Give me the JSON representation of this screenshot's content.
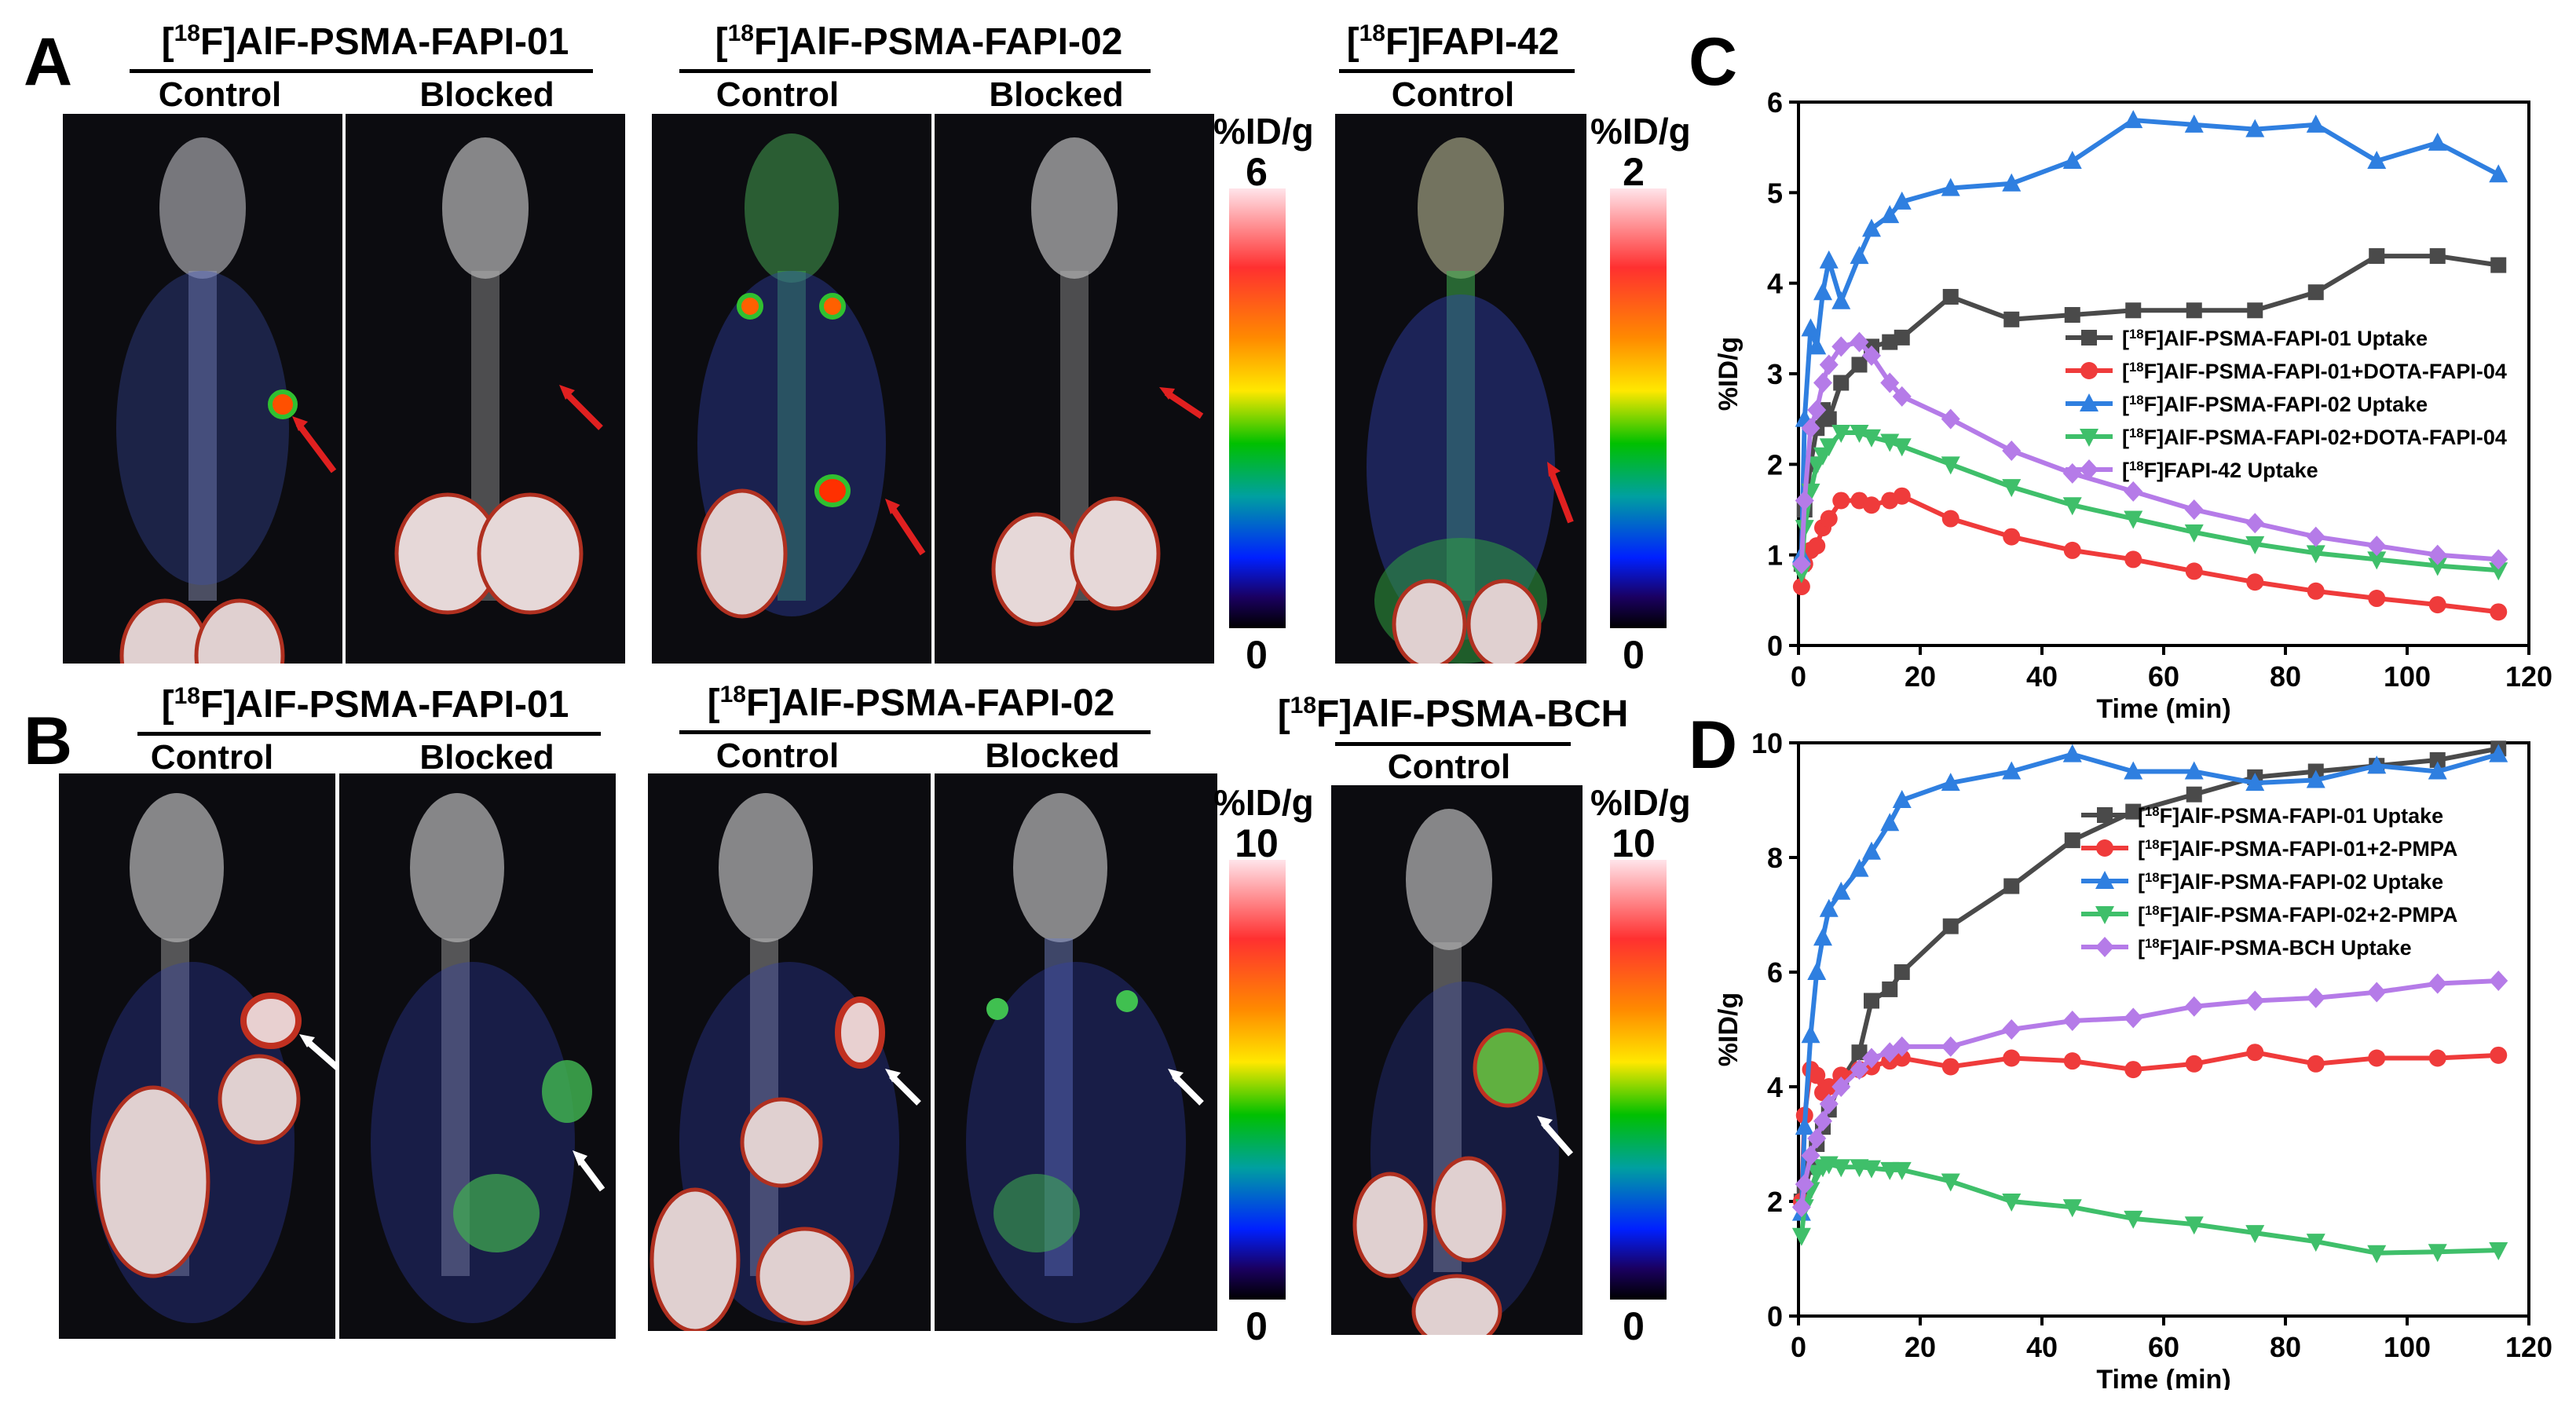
{
  "panels": {
    "A": {
      "letter": "A",
      "groups": [
        {
          "title_sup": "18",
          "title_pre": "[",
          "title_post": "F]AlF-PSMA-FAPI-01",
          "labels": [
            "Control",
            "Blocked"
          ]
        },
        {
          "title_sup": "18",
          "title_pre": "[",
          "title_post": "F]AlF-PSMA-FAPI-02",
          "labels": [
            "Control",
            "Blocked"
          ]
        },
        {
          "title_sup": "18",
          "title_pre": "[",
          "title_post": "F]FAPI-42",
          "labels": [
            "Control"
          ]
        }
      ],
      "colorbars": [
        {
          "unit": "%ID/g",
          "max": "6",
          "min": "0"
        },
        {
          "unit": "%ID/g",
          "max": "2",
          "min": "0"
        }
      ]
    },
    "B": {
      "letter": "B",
      "groups": [
        {
          "title_sup": "18",
          "title_pre": "[",
          "title_post": "F]AlF-PSMA-FAPI-01",
          "labels": [
            "Control",
            "Blocked"
          ]
        },
        {
          "title_sup": "18",
          "title_pre": "[",
          "title_post": "F]AlF-PSMA-FAPI-02",
          "labels": [
            "Control",
            "Blocked"
          ]
        },
        {
          "title_sup": "18",
          "title_pre": "[",
          "title_post": "F]AlF-PSMA-BCH",
          "labels": [
            "Control"
          ]
        }
      ],
      "colorbars": [
        {
          "unit": "%ID/g",
          "max": "10",
          "min": "0"
        },
        {
          "unit": "%ID/g",
          "max": "10",
          "min": "0"
        }
      ]
    },
    "C": {
      "letter": "C"
    },
    "D": {
      "letter": "D"
    }
  },
  "colors": {
    "black": "#4a4a4a",
    "red": "#ef3b3b",
    "blue": "#2f7fe0",
    "green": "#3fbf6a",
    "purple": "#b57be8"
  },
  "chart_data": [
    {
      "id": "C",
      "type": "line",
      "xlabel": "Time (min)",
      "ylabel": "%ID/g",
      "xlim": [
        0,
        120
      ],
      "ylim": [
        0,
        6
      ],
      "xticks": [
        0,
        20,
        40,
        60,
        80,
        100,
        120
      ],
      "yticks": [
        0,
        1,
        2,
        3,
        4,
        5,
        6
      ],
      "series": [
        {
          "name": "[18F]AlF-PSMA-FAPI-01 Uptake",
          "sup": "18",
          "pre": "[",
          "post": "F]AlF-PSMA-FAPI-01 Uptake",
          "color": "#4a4a4a",
          "marker": "square",
          "x": [
            0.5,
            1,
            2,
            3,
            4,
            5,
            7,
            10,
            12,
            15,
            17,
            25,
            35,
            45,
            55,
            65,
            75,
            85,
            95,
            105,
            115
          ],
          "y": [
            0.9,
            1.5,
            2.0,
            2.4,
            2.6,
            2.5,
            2.9,
            3.1,
            3.3,
            3.35,
            3.4,
            3.85,
            3.6,
            3.65,
            3.7,
            3.7,
            3.7,
            3.9,
            4.3,
            4.3,
            4.2
          ]
        },
        {
          "name": "[18F]AlF-PSMA-FAPI-01+DOTA-FAPI-04",
          "sup": "18",
          "pre": "[",
          "post": "F]AlF-PSMA-FAPI-01+DOTA-FAPI-04",
          "color": "#ef3b3b",
          "marker": "circle",
          "x": [
            0.5,
            1,
            2,
            3,
            4,
            5,
            7,
            10,
            12,
            15,
            17,
            25,
            35,
            45,
            55,
            65,
            75,
            85,
            95,
            105,
            115
          ],
          "y": [
            0.65,
            0.9,
            1.05,
            1.1,
            1.3,
            1.4,
            1.6,
            1.6,
            1.55,
            1.6,
            1.65,
            1.4,
            1.2,
            1.05,
            0.95,
            0.82,
            0.7,
            0.6,
            0.52,
            0.45,
            0.37
          ]
        },
        {
          "name": "[18F]AlF-PSMA-FAPI-02 Uptake",
          "sup": "18",
          "pre": "[",
          "post": "F]AlF-PSMA-FAPI-02 Uptake",
          "color": "#2f7fe0",
          "marker": "triangle-up",
          "x": [
            0.5,
            1,
            2,
            3,
            4,
            5,
            7,
            10,
            12,
            15,
            17,
            25,
            35,
            45,
            55,
            65,
            75,
            85,
            95,
            105,
            115
          ],
          "y": [
            1.0,
            2.5,
            3.5,
            3.3,
            3.9,
            4.25,
            3.8,
            4.3,
            4.6,
            4.75,
            4.9,
            5.05,
            5.1,
            5.35,
            5.8,
            5.75,
            5.7,
            5.75,
            5.35,
            5.55,
            5.2
          ]
        },
        {
          "name": "[18F]AlF-PSMA-FAPI-02+DOTA-FAPI-04",
          "sup": "18",
          "pre": "[",
          "post": "F]AlF-PSMA-FAPI-02+DOTA-FAPI-04",
          "color": "#3fbf6a",
          "marker": "triangle-down",
          "x": [
            0.5,
            1,
            2,
            3,
            4,
            5,
            7,
            10,
            12,
            15,
            17,
            25,
            35,
            45,
            55,
            65,
            75,
            85,
            95,
            105,
            115
          ],
          "y": [
            0.8,
            1.3,
            1.7,
            2.0,
            2.1,
            2.2,
            2.35,
            2.35,
            2.3,
            2.25,
            2.2,
            2.0,
            1.75,
            1.55,
            1.4,
            1.25,
            1.12,
            1.02,
            0.95,
            0.88,
            0.83
          ]
        },
        {
          "name": "[18F]FAPI-42 Uptake",
          "sup": "18",
          "pre": "[",
          "post": "F]FAPI-42 Uptake",
          "color": "#b57be8",
          "marker": "diamond",
          "x": [
            0.5,
            1,
            2,
            3,
            4,
            5,
            7,
            10,
            12,
            15,
            17,
            25,
            35,
            45,
            55,
            65,
            75,
            85,
            95,
            105,
            115
          ],
          "y": [
            0.9,
            1.6,
            2.4,
            2.6,
            2.9,
            3.1,
            3.3,
            3.35,
            3.2,
            2.9,
            2.75,
            2.5,
            2.15,
            1.9,
            1.7,
            1.5,
            1.35,
            1.2,
            1.1,
            1.0,
            0.95
          ]
        }
      ]
    },
    {
      "id": "D",
      "type": "line",
      "xlabel": "Time (min)",
      "ylabel": "%ID/g",
      "xlim": [
        0,
        120
      ],
      "ylim": [
        0,
        10
      ],
      "xticks": [
        0,
        20,
        40,
        60,
        80,
        100,
        120
      ],
      "yticks": [
        0,
        2,
        4,
        6,
        8,
        10
      ],
      "series": [
        {
          "name": "[18F]AlF-PSMA-FAPI-01 Uptake",
          "sup": "18",
          "pre": "[",
          "post": "F]AlF-PSMA-FAPI-01 Uptake",
          "color": "#4a4a4a",
          "marker": "square",
          "x": [
            0.5,
            1,
            2,
            3,
            4,
            5,
            7,
            10,
            12,
            15,
            17,
            25,
            35,
            45,
            55,
            65,
            75,
            85,
            95,
            105,
            115
          ],
          "y": [
            2.0,
            2.2,
            2.6,
            3.0,
            3.3,
            3.6,
            4.1,
            4.6,
            5.5,
            5.7,
            6.0,
            6.8,
            7.5,
            8.3,
            8.8,
            9.1,
            9.4,
            9.5,
            9.6,
            9.7,
            9.9
          ]
        },
        {
          "name": "[18F]AlF-PSMA-FAPI-01+2-PMPA",
          "sup": "18",
          "pre": "[",
          "post": "F]AlF-PSMA-FAPI-01+2-PMPA",
          "color": "#ef3b3b",
          "marker": "circle",
          "x": [
            0.5,
            1,
            2,
            3,
            4,
            5,
            7,
            10,
            12,
            15,
            17,
            25,
            35,
            45,
            55,
            65,
            75,
            85,
            95,
            105,
            115
          ],
          "y": [
            2.0,
            3.5,
            4.3,
            4.2,
            3.9,
            4.0,
            4.2,
            4.3,
            4.35,
            4.45,
            4.5,
            4.35,
            4.5,
            4.45,
            4.3,
            4.4,
            4.6,
            4.4,
            4.5,
            4.5,
            4.55
          ]
        },
        {
          "name": "[18F]AlF-PSMA-FAPI-02 Uptake",
          "sup": "18",
          "pre": "[",
          "post": "F]AlF-PSMA-FAPI-02 Uptake",
          "color": "#2f7fe0",
          "marker": "triangle-up",
          "x": [
            0.5,
            1,
            2,
            3,
            4,
            5,
            7,
            10,
            12,
            15,
            17,
            25,
            35,
            45,
            55,
            65,
            75,
            85,
            95,
            105,
            115
          ],
          "y": [
            1.8,
            3.3,
            4.9,
            6.0,
            6.6,
            7.1,
            7.4,
            7.8,
            8.1,
            8.6,
            9.0,
            9.3,
            9.5,
            9.8,
            9.5,
            9.5,
            9.3,
            9.35,
            9.6,
            9.5,
            9.8
          ]
        },
        {
          "name": "[18F]AlF-PSMA-FAPI-02+2-PMPA",
          "sup": "18",
          "pre": "[",
          "post": "F]AlF-PSMA-FAPI-02+2-PMPA",
          "color": "#3fbf6a",
          "marker": "triangle-down",
          "x": [
            0.5,
            1,
            2,
            3,
            4,
            5,
            7,
            10,
            12,
            15,
            17,
            25,
            35,
            45,
            55,
            65,
            75,
            85,
            95,
            105,
            115
          ],
          "y": [
            1.4,
            1.9,
            2.2,
            2.5,
            2.6,
            2.65,
            2.6,
            2.6,
            2.58,
            2.55,
            2.55,
            2.35,
            2.0,
            1.9,
            1.7,
            1.6,
            1.45,
            1.3,
            1.1,
            1.12,
            1.15
          ]
        },
        {
          "name": "[18F]AlF-PSMA-BCH Uptake",
          "sup": "18",
          "pre": "[",
          "post": "F]AlF-PSMA-BCH Uptake",
          "color": "#b57be8",
          "marker": "diamond",
          "x": [
            0.5,
            1,
            2,
            3,
            4,
            5,
            7,
            10,
            12,
            15,
            17,
            25,
            35,
            45,
            55,
            65,
            75,
            85,
            95,
            105,
            115
          ],
          "y": [
            1.9,
            2.3,
            2.8,
            3.1,
            3.4,
            3.7,
            4.0,
            4.3,
            4.5,
            4.6,
            4.7,
            4.7,
            5.0,
            5.15,
            5.2,
            5.4,
            5.5,
            5.55,
            5.65,
            5.8,
            5.85
          ]
        }
      ]
    }
  ]
}
